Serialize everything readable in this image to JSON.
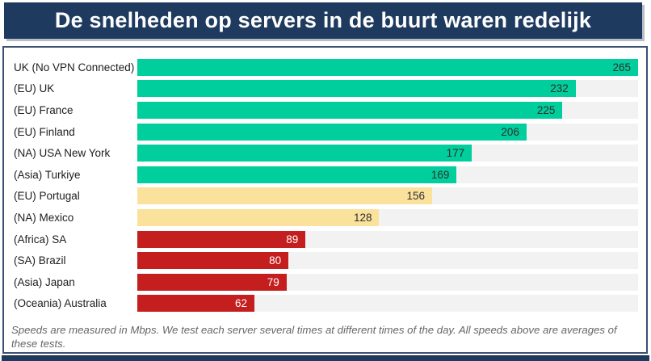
{
  "title": "De snelheden op servers in de buurt waren redelijk",
  "footer_note": "Speeds are measured in Mbps. We test each server several times at different times of the day. All speeds above are averages of these tests.",
  "colors": {
    "header_bg": "#1E3A5F",
    "header_text": "#FFFFFF",
    "card_border": "#3C5071",
    "track": "#F2F2F2",
    "fast": "#00CE9C",
    "medium": "#FBE29C",
    "slow": "#C41E1E",
    "value_text_dark": "#2E2E2E",
    "value_text_light": "#FFFFFF",
    "label_text": "#1D1D1D",
    "footer_text": "#666666",
    "bottom_strip": "#1E3A5F"
  },
  "chart_data": {
    "type": "bar",
    "orientation": "horizontal",
    "unit": "Mbps",
    "xlim": [
      0,
      265
    ],
    "grid": "off",
    "legend": "none",
    "value_labels_shown": true,
    "categories": [
      "UK (No VPN Connected)",
      "(EU) UK",
      "(EU) France",
      "(EU) Finland",
      "(NA) USA New York",
      "(Asia) Turkiye",
      "(EU) Portugal",
      "(NA) Mexico",
      "(Africa) SA",
      "(SA) Brazil",
      "(Asia) Japan",
      "(Oceania) Australia"
    ],
    "values": [
      265,
      232,
      225,
      206,
      177,
      169,
      156,
      128,
      89,
      80,
      79,
      62
    ],
    "tiers": [
      "fast",
      "fast",
      "fast",
      "fast",
      "fast",
      "fast",
      "medium",
      "medium",
      "slow",
      "slow",
      "slow",
      "slow"
    ]
  }
}
